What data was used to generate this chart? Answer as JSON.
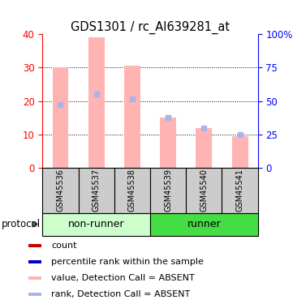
{
  "title": "GDS1301 / rc_AI639281_at",
  "samples": [
    "GSM45536",
    "GSM45537",
    "GSM45538",
    "GSM45539",
    "GSM45540",
    "GSM45541"
  ],
  "bar_values": [
    30,
    39,
    30.5,
    15,
    12,
    9.5
  ],
  "rank_values": [
    19,
    22,
    20.5,
    15,
    12,
    10
  ],
  "ylim_left": [
    0,
    40
  ],
  "ylim_right": [
    0,
    100
  ],
  "yticks_left": [
    0,
    10,
    20,
    30,
    40
  ],
  "yticks_right": [
    0,
    25,
    50,
    75,
    100
  ],
  "ytick_labels_right": [
    "0",
    "25",
    "50",
    "75",
    "100%"
  ],
  "bar_color": "#ffb3b3",
  "rank_color": "#aab4e8",
  "group_labels": [
    "non-runner",
    "runner"
  ],
  "group_ranges": [
    [
      0,
      3
    ],
    [
      3,
      6
    ]
  ],
  "group_colors_light": "#ccffcc",
  "group_colors_dark": "#44dd44",
  "sample_box_color": "#cccccc",
  "legend_items": [
    {
      "color": "#cc0000",
      "label": "count"
    },
    {
      "color": "#0000cc",
      "label": "percentile rank within the sample"
    },
    {
      "color": "#ffb3b3",
      "label": "value, Detection Call = ABSENT"
    },
    {
      "color": "#aab4e8",
      "label": "rank, Detection Call = ABSENT"
    }
  ],
  "title_fontsize": 10.5,
  "tick_fontsize": 8.5,
  "sample_fontsize": 7,
  "group_fontsize": 9,
  "legend_fontsize": 8
}
